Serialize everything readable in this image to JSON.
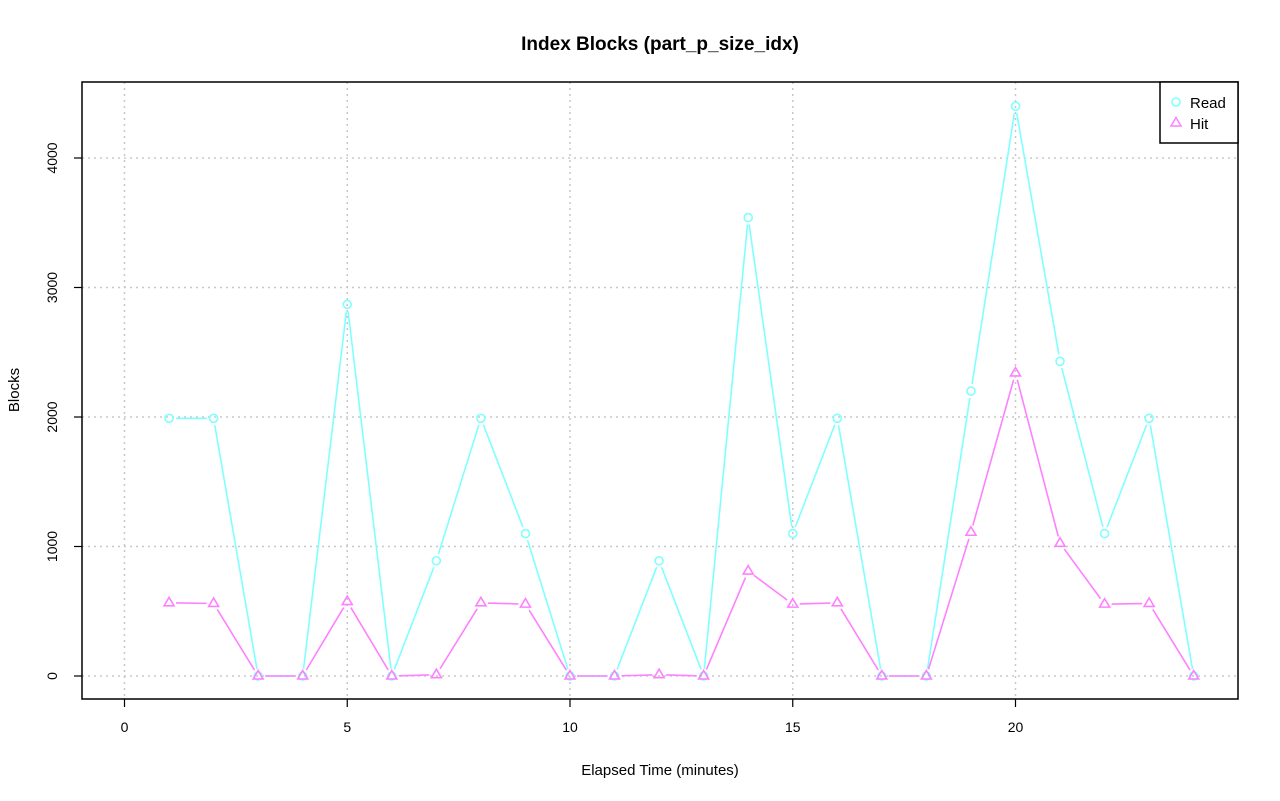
{
  "chart_data": {
    "type": "line",
    "title": "Index Blocks (part_p_size_idx)",
    "xlabel": "Elapsed Time (minutes)",
    "ylabel": "Blocks",
    "xlim": [
      0,
      24
    ],
    "ylim": [
      0,
      4400
    ],
    "x_ticks": [
      "0",
      "5",
      "10",
      "15",
      "20"
    ],
    "y_ticks": [
      "0",
      "1000",
      "2000",
      "3000",
      "4000"
    ],
    "grid": true,
    "legend_position": "top-right",
    "x": [
      1,
      2,
      3,
      4,
      5,
      6,
      7,
      8,
      9,
      10,
      11,
      12,
      13,
      14,
      15,
      16,
      17,
      18,
      19,
      20,
      21,
      22,
      23,
      24
    ],
    "series": [
      {
        "name": "Read",
        "color": "#80ffff",
        "marker": "circle",
        "values": [
          1990,
          1990,
          0,
          0,
          2870,
          0,
          890,
          1990,
          1100,
          0,
          0,
          890,
          0,
          3540,
          1100,
          1990,
          0,
          0,
          2200,
          4400,
          2430,
          1100,
          1990,
          0
        ]
      },
      {
        "name": "Hit",
        "color": "#ff80ff",
        "marker": "triangle",
        "values": [
          565,
          560,
          0,
          0,
          575,
          0,
          10,
          565,
          555,
          0,
          0,
          10,
          0,
          810,
          555,
          565,
          0,
          0,
          1110,
          2340,
          1025,
          555,
          560,
          0
        ]
      }
    ]
  }
}
